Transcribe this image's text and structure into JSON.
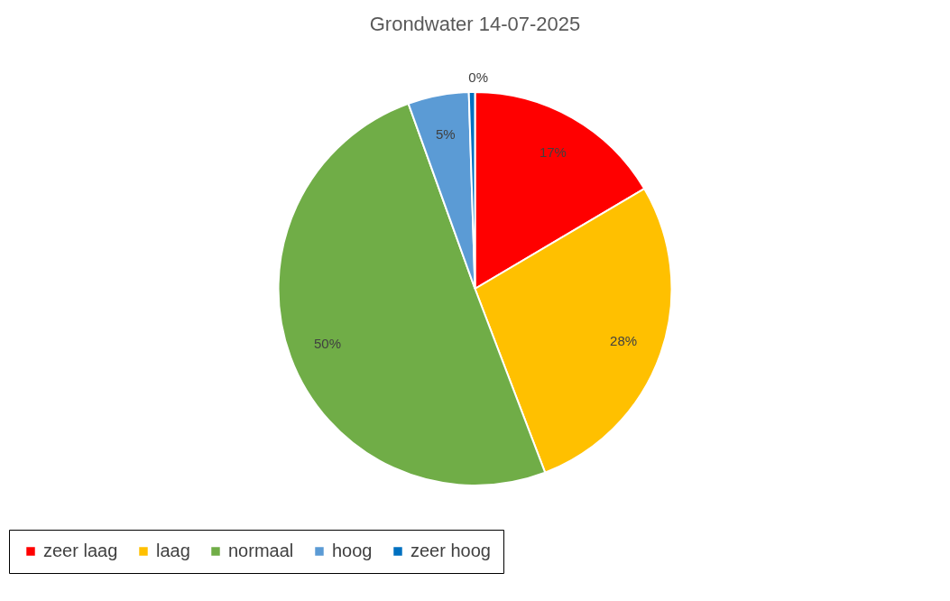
{
  "chart_data": {
    "type": "pie",
    "title": "Grondwater  14-07-2025",
    "categories": [
      "zeer laag",
      "laag",
      "normaal",
      "hoog",
      "zeer hoog"
    ],
    "values": [
      16.5,
      27.7,
      50.3,
      5.0,
      0.5
    ],
    "value_labels": [
      "17%",
      "28%",
      "50%",
      "5%",
      "0%"
    ],
    "colors": [
      "#ff0000",
      "#ffc000",
      "#70ad47",
      "#5b9bd5",
      "#0070c0"
    ],
    "legend": "bottom"
  }
}
